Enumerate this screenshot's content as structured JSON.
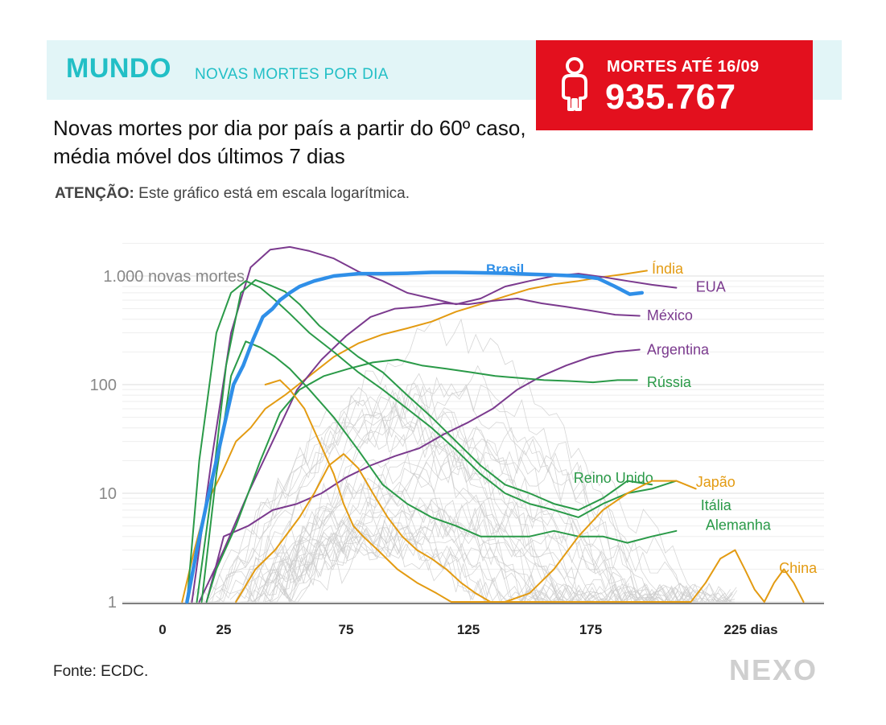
{
  "header": {
    "region": "MUNDO",
    "metric": "NOVAS MORTES POR DIA"
  },
  "deaths_box": {
    "label": "MORTES ATÉ 16/09",
    "value": "935.767",
    "icon": "person-icon"
  },
  "subtitle": "Novas mortes por dia por país a partir do 60º caso, média móvel dos últimos 7 dias",
  "note": {
    "prefix": "ATENÇÃO:",
    "text": "Este gráfico está em escala logarítmica."
  },
  "source": "Fonte: ECDC.",
  "logo": "NEXO",
  "colors": {
    "brazil": "#2f8fe8",
    "orange": "#e39b12",
    "green": "#2a9a48",
    "purple": "#7b3a8e",
    "other": "#cccccc",
    "band": "#e2f5f7",
    "accent": "#22bfc6",
    "red": "#e3101e"
  },
  "chart_data": {
    "type": "line",
    "y_scale": "log",
    "ylim": [
      1,
      2000
    ],
    "xlim": [
      0,
      250
    ],
    "y_ticks": [
      {
        "value": 1,
        "label": "1"
      },
      {
        "value": 10,
        "label": "10"
      },
      {
        "value": 100,
        "label": "100"
      },
      {
        "value": 1000,
        "label": "1.000 novas mortes"
      }
    ],
    "x_ticks": [
      {
        "value": 0,
        "label": "0"
      },
      {
        "value": 25,
        "label": "25"
      },
      {
        "value": 75,
        "label": "75"
      },
      {
        "value": 125,
        "label": "125"
      },
      {
        "value": 175,
        "label": "175"
      },
      {
        "value": 225,
        "label": "225 dias"
      }
    ],
    "series": [
      {
        "name": "Brasil",
        "color": "brazil",
        "width": 4.5,
        "label_at": [
          140,
          1050
        ],
        "points": [
          [
            10,
            1
          ],
          [
            14,
            3
          ],
          [
            18,
            8
          ],
          [
            22,
            20
          ],
          [
            26,
            50
          ],
          [
            29,
            100
          ],
          [
            33,
            150
          ],
          [
            37,
            260
          ],
          [
            41,
            420
          ],
          [
            45,
            500
          ],
          [
            48,
            600
          ],
          [
            52,
            700
          ],
          [
            56,
            800
          ],
          [
            62,
            900
          ],
          [
            70,
            1000
          ],
          [
            80,
            1050
          ],
          [
            90,
            1050
          ],
          [
            100,
            1060
          ],
          [
            110,
            1080
          ],
          [
            120,
            1080
          ],
          [
            130,
            1070
          ],
          [
            140,
            1060
          ],
          [
            150,
            1040
          ],
          [
            160,
            1020
          ],
          [
            170,
            1000
          ],
          [
            178,
            950
          ],
          [
            185,
            800
          ],
          [
            191,
            680
          ],
          [
            196,
            700
          ]
        ]
      },
      {
        "name": "Índia",
        "color": "orange",
        "width": 2,
        "label_at": [
          200,
          1050
        ],
        "points": [
          [
            8,
            1
          ],
          [
            13,
            3
          ],
          [
            18,
            8
          ],
          [
            24,
            15
          ],
          [
            30,
            30
          ],
          [
            36,
            40
          ],
          [
            42,
            60
          ],
          [
            50,
            80
          ],
          [
            60,
            120
          ],
          [
            70,
            180
          ],
          [
            80,
            240
          ],
          [
            90,
            290
          ],
          [
            100,
            330
          ],
          [
            110,
            380
          ],
          [
            120,
            470
          ],
          [
            130,
            550
          ],
          [
            140,
            650
          ],
          [
            150,
            760
          ],
          [
            160,
            840
          ],
          [
            170,
            900
          ],
          [
            180,
            980
          ],
          [
            190,
            1050
          ],
          [
            198,
            1120
          ]
        ]
      },
      {
        "name": "EUA",
        "color": "purple",
        "width": 2,
        "label_at": [
          218,
          720
        ],
        "points": [
          [
            12,
            1
          ],
          [
            20,
            20
          ],
          [
            28,
            300
          ],
          [
            36,
            1200
          ],
          [
            44,
            1750
          ],
          [
            52,
            1850
          ],
          [
            60,
            1700
          ],
          [
            70,
            1450
          ],
          [
            80,
            1100
          ],
          [
            90,
            900
          ],
          [
            100,
            700
          ],
          [
            110,
            620
          ],
          [
            120,
            550
          ],
          [
            130,
            620
          ],
          [
            140,
            800
          ],
          [
            150,
            900
          ],
          [
            160,
            1000
          ],
          [
            170,
            1050
          ],
          [
            180,
            980
          ],
          [
            190,
            900
          ],
          [
            200,
            830
          ],
          [
            210,
            780
          ]
        ]
      },
      {
        "name": "México",
        "color": "purple",
        "width": 2,
        "label_at": [
          198,
          390
        ],
        "points": [
          [
            15,
            1
          ],
          [
            25,
            3
          ],
          [
            35,
            10
          ],
          [
            45,
            30
          ],
          [
            55,
            90
          ],
          [
            65,
            170
          ],
          [
            75,
            280
          ],
          [
            85,
            420
          ],
          [
            95,
            500
          ],
          [
            105,
            520
          ],
          [
            115,
            560
          ],
          [
            125,
            550
          ],
          [
            135,
            590
          ],
          [
            145,
            620
          ],
          [
            155,
            560
          ],
          [
            165,
            520
          ],
          [
            175,
            480
          ],
          [
            185,
            440
          ],
          [
            195,
            430
          ]
        ]
      },
      {
        "name": "Argentina",
        "color": "purple",
        "width": 2,
        "label_at": [
          198,
          190
        ],
        "points": [
          [
            18,
            1
          ],
          [
            25,
            4
          ],
          [
            35,
            5
          ],
          [
            45,
            7
          ],
          [
            55,
            8
          ],
          [
            65,
            10
          ],
          [
            75,
            14
          ],
          [
            85,
            18
          ],
          [
            95,
            22
          ],
          [
            105,
            26
          ],
          [
            115,
            35
          ],
          [
            125,
            45
          ],
          [
            135,
            60
          ],
          [
            145,
            90
          ],
          [
            155,
            120
          ],
          [
            165,
            150
          ],
          [
            175,
            180
          ],
          [
            185,
            200
          ],
          [
            195,
            210
          ]
        ]
      },
      {
        "name": "Rússia",
        "color": "green",
        "width": 2,
        "label_at": [
          198,
          95
        ],
        "points": [
          [
            18,
            1
          ],
          [
            22,
            2
          ],
          [
            30,
            5
          ],
          [
            40,
            20
          ],
          [
            48,
            55
          ],
          [
            56,
            90
          ],
          [
            66,
            120
          ],
          [
            76,
            140
          ],
          [
            86,
            160
          ],
          [
            96,
            170
          ],
          [
            106,
            150
          ],
          [
            116,
            140
          ],
          [
            126,
            130
          ],
          [
            136,
            120
          ],
          [
            146,
            115
          ],
          [
            156,
            110
          ],
          [
            166,
            108
          ],
          [
            176,
            105
          ],
          [
            186,
            110
          ],
          [
            194,
            110
          ]
        ]
      },
      {
        "name": "Reino Unido",
        "color": "green",
        "width": 2,
        "label_at": [
          168,
          12.5
        ],
        "points": [
          [
            14,
            1
          ],
          [
            20,
            10
          ],
          [
            26,
            150
          ],
          [
            32,
            700
          ],
          [
            38,
            920
          ],
          [
            44,
            820
          ],
          [
            50,
            720
          ],
          [
            56,
            550
          ],
          [
            64,
            350
          ],
          [
            72,
            250
          ],
          [
            80,
            180
          ],
          [
            90,
            130
          ],
          [
            100,
            80
          ],
          [
            110,
            50
          ],
          [
            120,
            30
          ],
          [
            130,
            18
          ],
          [
            140,
            12
          ],
          [
            150,
            10
          ],
          [
            160,
            8
          ],
          [
            170,
            7
          ],
          [
            180,
            9
          ],
          [
            190,
            13
          ],
          [
            200,
            12
          ]
        ]
      },
      {
        "name": "Itália",
        "color": "green",
        "width": 2,
        "label_at": [
          220,
          7
        ],
        "points": [
          [
            10,
            1
          ],
          [
            15,
            20
          ],
          [
            22,
            300
          ],
          [
            28,
            700
          ],
          [
            34,
            900
          ],
          [
            40,
            780
          ],
          [
            46,
            600
          ],
          [
            52,
            450
          ],
          [
            60,
            300
          ],
          [
            70,
            200
          ],
          [
            80,
            130
          ],
          [
            90,
            90
          ],
          [
            100,
            60
          ],
          [
            110,
            40
          ],
          [
            120,
            25
          ],
          [
            130,
            15
          ],
          [
            140,
            10
          ],
          [
            150,
            8
          ],
          [
            160,
            7
          ],
          [
            170,
            6
          ],
          [
            180,
            8
          ],
          [
            190,
            10
          ],
          [
            200,
            11
          ],
          [
            210,
            13
          ]
        ]
      },
      {
        "name": "Alemanha",
        "color": "green",
        "width": 2,
        "label_at": [
          222,
          4.6
        ],
        "points": [
          [
            16,
            1
          ],
          [
            22,
            15
          ],
          [
            28,
            120
          ],
          [
            34,
            250
          ],
          [
            40,
            220
          ],
          [
            46,
            180
          ],
          [
            52,
            140
          ],
          [
            60,
            90
          ],
          [
            70,
            50
          ],
          [
            80,
            25
          ],
          [
            90,
            12
          ],
          [
            100,
            8
          ],
          [
            110,
            6
          ],
          [
            120,
            5
          ],
          [
            130,
            4
          ],
          [
            140,
            4
          ],
          [
            150,
            4
          ],
          [
            160,
            4.5
          ],
          [
            170,
            4
          ],
          [
            180,
            4
          ],
          [
            190,
            3.5
          ],
          [
            200,
            4
          ],
          [
            210,
            4.5
          ]
        ]
      },
      {
        "name": "Japão",
        "color": "orange",
        "width": 2,
        "label_at": [
          218,
          11.5
        ],
        "points": [
          [
            30,
            1
          ],
          [
            38,
            2
          ],
          [
            46,
            3
          ],
          [
            56,
            6
          ],
          [
            62,
            10
          ],
          [
            68,
            18
          ],
          [
            74,
            23
          ],
          [
            80,
            17
          ],
          [
            86,
            10
          ],
          [
            92,
            6
          ],
          [
            98,
            4
          ],
          [
            104,
            3
          ],
          [
            110,
            2.5
          ],
          [
            116,
            2
          ],
          [
            122,
            1.5
          ],
          [
            128,
            1.2
          ],
          [
            134,
            1.0
          ],
          [
            140,
            1.0
          ],
          [
            150,
            1.2
          ],
          [
            160,
            2
          ],
          [
            170,
            4
          ],
          [
            180,
            7
          ],
          [
            190,
            10
          ],
          [
            200,
            13
          ],
          [
            210,
            13
          ],
          [
            218,
            11
          ]
        ]
      },
      {
        "name": "China",
        "color": "orange",
        "width": 2,
        "label_at": [
          252,
          1.85
        ],
        "points": [
          [
            42,
            100
          ],
          [
            48,
            110
          ],
          [
            52,
            90
          ],
          [
            58,
            60
          ],
          [
            64,
            30
          ],
          [
            70,
            15
          ],
          [
            74,
            8
          ],
          [
            78,
            5
          ],
          [
            82,
            4
          ],
          [
            88,
            3
          ],
          [
            96,
            2
          ],
          [
            104,
            1.5
          ],
          [
            112,
            1.2
          ],
          [
            118,
            1.0
          ],
          [
            216,
            1.0
          ],
          [
            222,
            1.5
          ],
          [
            228,
            2.5
          ],
          [
            234,
            3
          ],
          [
            238,
            2
          ],
          [
            242,
            1.3
          ],
          [
            246,
            1.0
          ],
          [
            250,
            1.5
          ],
          [
            254,
            2
          ],
          [
            258,
            1.5
          ],
          [
            262,
            1.0
          ]
        ]
      }
    ]
  }
}
